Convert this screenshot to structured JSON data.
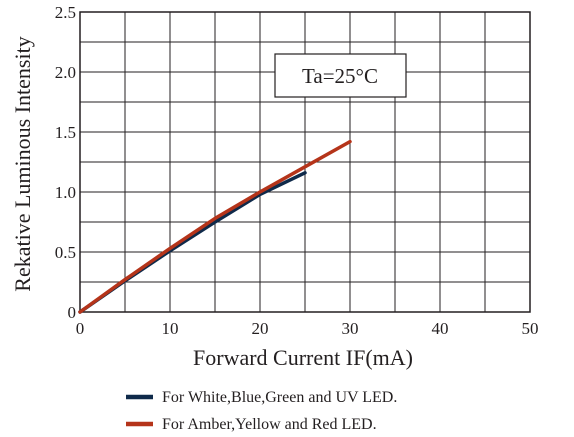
{
  "chart_data": {
    "type": "line",
    "xlabel": "Forward Current IF(mA)",
    "ylabel": "Rekative Luminous Intensity",
    "xlim": [
      0,
      50
    ],
    "ylim": [
      0,
      2.5
    ],
    "x_ticks": [
      "0",
      "10",
      "20",
      "30",
      "40",
      "50"
    ],
    "y_ticks": [
      "0",
      "0.5",
      "1.0",
      "1.5",
      "2.0",
      "2.5"
    ],
    "x_tick_values": [
      0,
      10,
      20,
      30,
      40,
      50
    ],
    "y_tick_values": [
      0,
      0.5,
      1.0,
      1.5,
      2.0,
      2.5
    ],
    "x_grid_step": 5,
    "y_grid_step": 0.25,
    "grid": true,
    "annotation": "Ta=25°C",
    "legend_placement": "below",
    "series": [
      {
        "name": "For White,Blue,Green and UV LED.",
        "color": "#0f2a4a",
        "x": [
          0,
          5,
          10,
          15,
          20,
          25
        ],
        "y": [
          0,
          0.26,
          0.51,
          0.75,
          0.98,
          1.16
        ]
      },
      {
        "name": "For Amber,Yellow and Red LED.",
        "color": "#b5341a",
        "x": [
          0,
          5,
          10,
          15,
          20,
          25,
          30
        ],
        "y": [
          0,
          0.27,
          0.53,
          0.78,
          1.0,
          1.21,
          1.42
        ]
      }
    ]
  }
}
